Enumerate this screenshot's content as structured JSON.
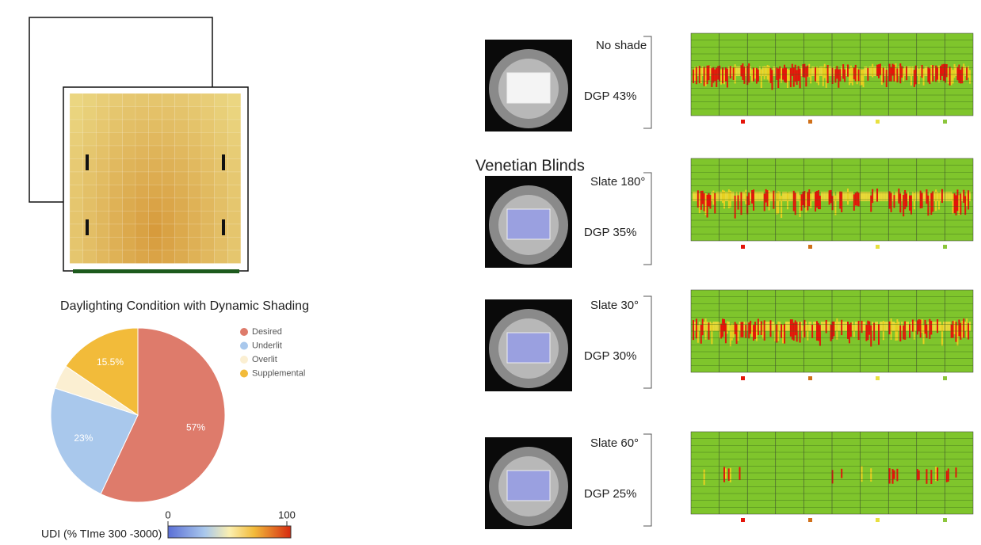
{
  "chart_data": {
    "type": "pie",
    "title": "Daylighting Condition with Dynamic Shading",
    "categories": [
      "Desired",
      "Underlit",
      "Overlit",
      "Supplemental"
    ],
    "values": [
      57,
      23,
      4.5,
      15.5
    ],
    "value_labels": [
      "57%",
      "23%",
      null,
      "15.5%"
    ],
    "colors": [
      "#de7b6b",
      "#a9c8ec",
      "#fbefd2",
      "#f2bb3a"
    ]
  },
  "colorbar": {
    "ticks": [
      0,
      100
    ],
    "label": "UDI (% TIme 300 -3000)"
  },
  "section_title": "Venetian Blinds",
  "panels": [
    {
      "shade": "No shade",
      "dgp": "DGP 43%"
    },
    {
      "shade": "Slate 180°",
      "dgp": "DGP 35%"
    },
    {
      "shade": "Slate 30°",
      "dgp": "DGP 30%"
    },
    {
      "shade": "Slate 60°",
      "dgp": "DGP 25%"
    }
  ]
}
